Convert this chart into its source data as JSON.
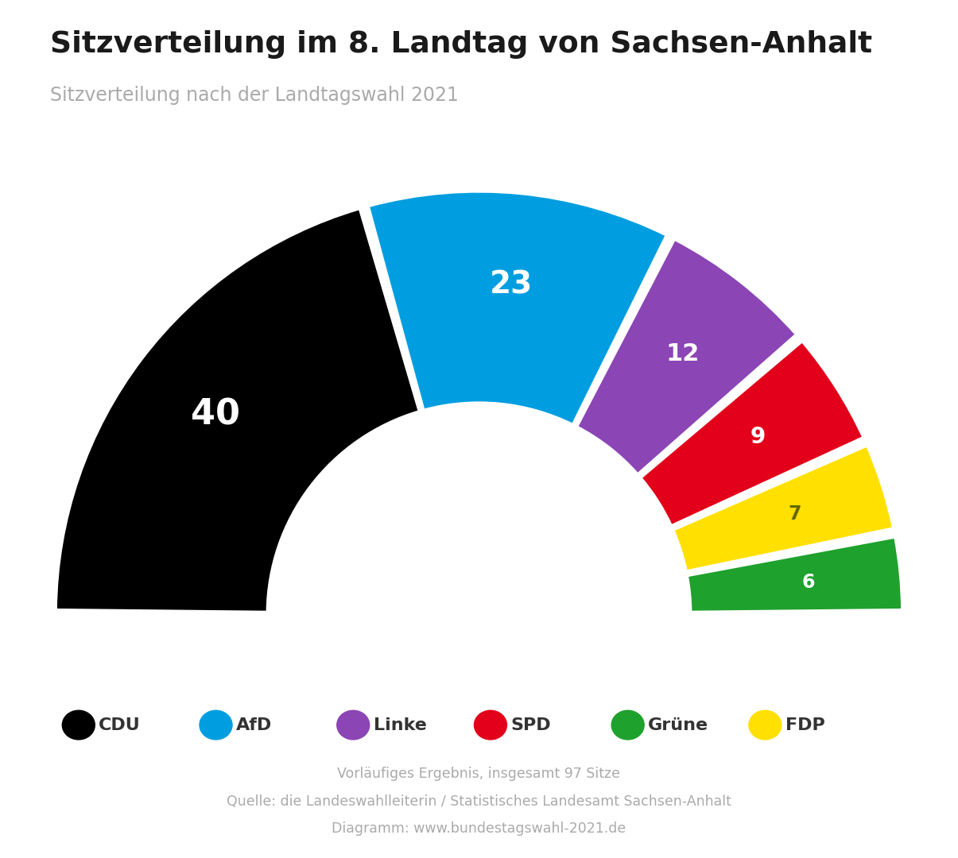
{
  "title": "Sitzverteilung im 8. Landtag von Sachsen-Anhalt",
  "subtitle": "Sitzverteilung nach der Landtagswahl 2021",
  "parties": [
    "CDU",
    "AfD",
    "Linke",
    "SPD",
    "Grüne",
    "FDP"
  ],
  "seats": [
    40,
    23,
    12,
    9,
    6,
    7
  ],
  "colors": [
    "#000000",
    "#009EE0",
    "#8B45B5",
    "#E2001A",
    "#1FA12D",
    "#FFE000"
  ],
  "total": 97,
  "label_colors": [
    "#ffffff",
    "#ffffff",
    "#ffffff",
    "#ffffff",
    "#ffffff",
    "#666600"
  ],
  "footnote1": "Vorläufiges Ergebnis, insgesamt 97 Sitze",
  "footnote2": "Quelle: die Landeswahlleiterin / Statistisches Landesamt Sachsen-Anhalt",
  "footnote3": "Diagramm: www.bundestagswahl-2021.de",
  "bg_color": "#ffffff",
  "title_color": "#1a1a1a",
  "subtitle_color": "#aaaaaa",
  "footnote_color": "#aaaaaa",
  "legend_label_color": "#333333",
  "chart_order": [
    0,
    1,
    2,
    3,
    5,
    4
  ],
  "legend_order": [
    0,
    1,
    2,
    3,
    4,
    5
  ]
}
